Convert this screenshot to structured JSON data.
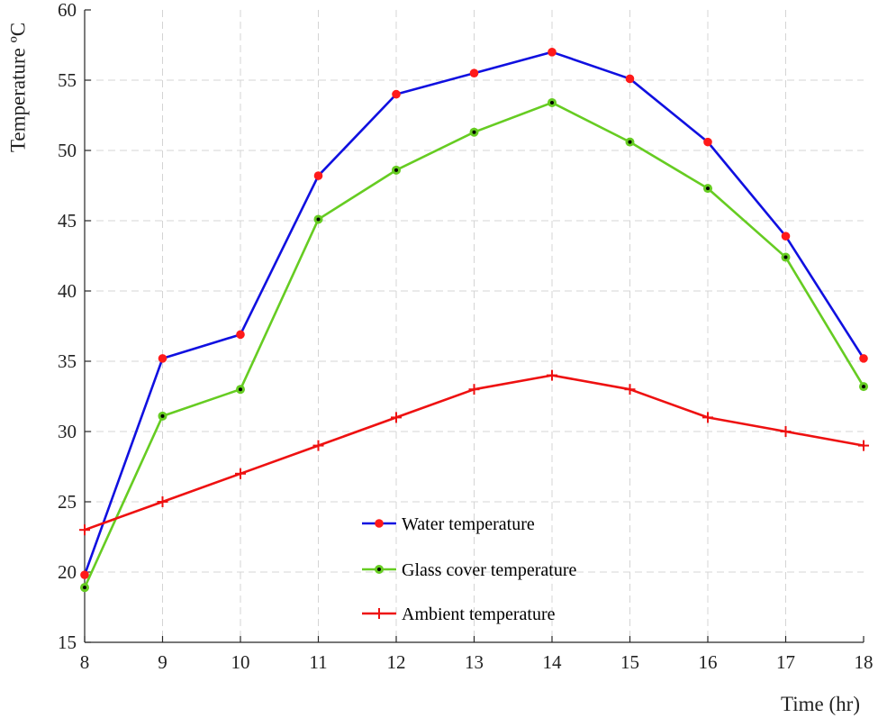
{
  "chart_data": {
    "type": "line",
    "xlabel": "Time (hr)",
    "ylabel": "Temperature ºC",
    "xlim": [
      8,
      18
    ],
    "ylim": [
      15,
      60
    ],
    "x": [
      8,
      9,
      10,
      11,
      12,
      13,
      14,
      15,
      16,
      17,
      18
    ],
    "xticks": [
      "8",
      "9",
      "10",
      "11",
      "12",
      "13",
      "14",
      "15",
      "16",
      "17",
      "18"
    ],
    "yticks": [
      "15",
      "20",
      "25",
      "30",
      "35",
      "40",
      "45",
      "50",
      "55",
      "60"
    ],
    "grid": true,
    "legend_position": "lower-center",
    "series": [
      {
        "name": "Water temperature",
        "color": "#1010e0",
        "marker": "circle",
        "marker_color": "#ff1a1a",
        "values": [
          19.8,
          35.2,
          36.9,
          48.2,
          54.0,
          55.5,
          57.0,
          55.1,
          50.6,
          43.9,
          35.2
        ]
      },
      {
        "name": "Glass cover temperature",
        "color": "#66cc22",
        "marker": "circle-dot",
        "marker_color": "#66cc22",
        "values": [
          18.9,
          31.1,
          33.0,
          45.1,
          48.6,
          51.3,
          53.4,
          50.6,
          47.3,
          42.4,
          33.2
        ]
      },
      {
        "name": "Ambient temperature",
        "color": "#ee1111",
        "marker": "plus",
        "marker_color": "#ee1111",
        "values": [
          23,
          25,
          27,
          29,
          31,
          33,
          34,
          33,
          31,
          30,
          29
        ]
      }
    ]
  }
}
